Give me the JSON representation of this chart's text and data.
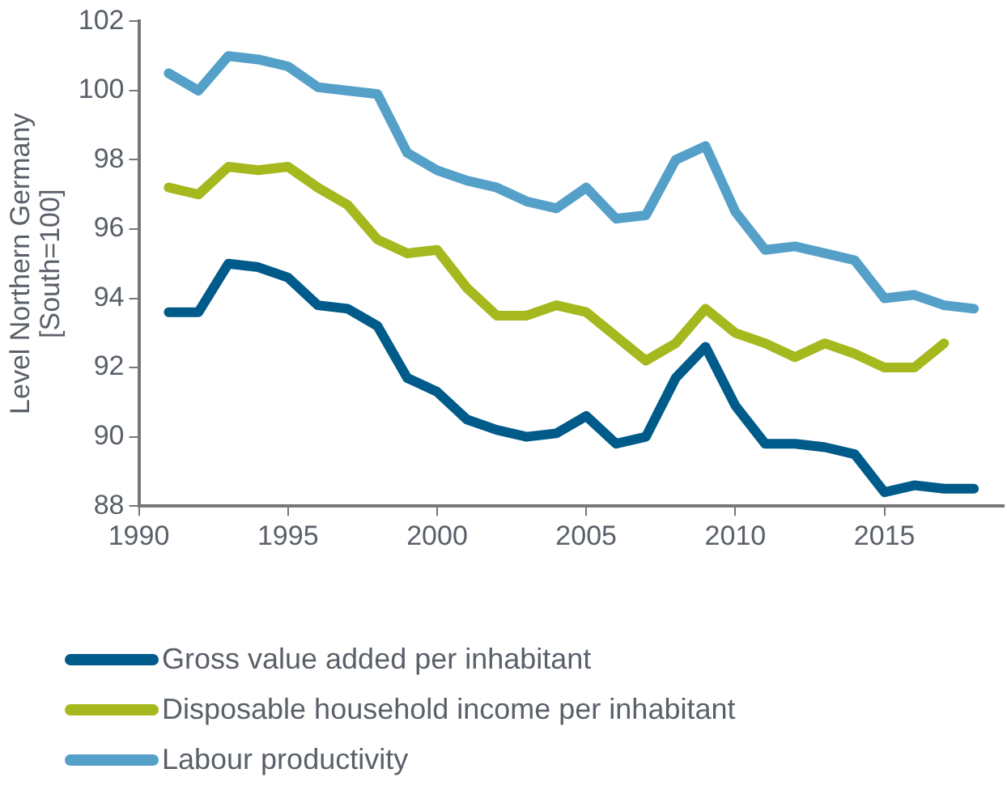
{
  "chart_data": {
    "type": "line",
    "ylabel": "Level Northern Germany\n[South=100]",
    "x": [
      1991,
      1992,
      1993,
      1994,
      1995,
      1996,
      1997,
      1998,
      1999,
      2000,
      2001,
      2002,
      2003,
      2004,
      2005,
      2006,
      2007,
      2008,
      2009,
      2010,
      2011,
      2012,
      2013,
      2014,
      2015,
      2016,
      2017,
      2018
    ],
    "series": [
      {
        "name": "Gross value added per inhabitant",
        "color": "#005b8a",
        "values": [
          93.6,
          93.6,
          95.0,
          94.9,
          94.6,
          93.8,
          93.7,
          93.2,
          91.7,
          91.3,
          90.5,
          90.2,
          90.0,
          90.1,
          90.6,
          89.8,
          90.0,
          91.7,
          92.6,
          90.9,
          89.8,
          89.8,
          89.7,
          89.5,
          88.4,
          88.6,
          88.5,
          88.5
        ]
      },
      {
        "name": "Disposable household income per inhabitant",
        "color": "#a5b81d",
        "values": [
          97.2,
          97.0,
          97.8,
          97.7,
          97.8,
          97.2,
          96.7,
          95.7,
          95.3,
          95.4,
          94.3,
          93.5,
          93.5,
          93.8,
          93.6,
          92.9,
          92.2,
          92.7,
          93.7,
          93.0,
          92.7,
          92.3,
          92.7,
          92.4,
          92.0,
          92.0,
          92.7,
          null
        ]
      },
      {
        "name": "Labour productivity",
        "color": "#55a0c8",
        "values": [
          100.5,
          100.0,
          101.0,
          100.9,
          100.7,
          100.1,
          100.0,
          99.9,
          98.2,
          97.7,
          97.4,
          97.2,
          96.8,
          96.6,
          97.2,
          96.3,
          96.4,
          98.0,
          98.4,
          96.5,
          95.4,
          95.5,
          95.3,
          95.1,
          94.0,
          94.1,
          93.8,
          93.7
        ]
      }
    ],
    "xlim": [
      1990,
      2019
    ],
    "xticks": [
      1990,
      1995,
      2000,
      2005,
      2010,
      2015
    ],
    "ylim": [
      88,
      102
    ],
    "yticks": [
      88,
      90,
      92,
      94,
      96,
      98,
      100,
      102
    ],
    "grid": false,
    "legend": "bottom",
    "marker": "none",
    "line_style": "solid"
  }
}
